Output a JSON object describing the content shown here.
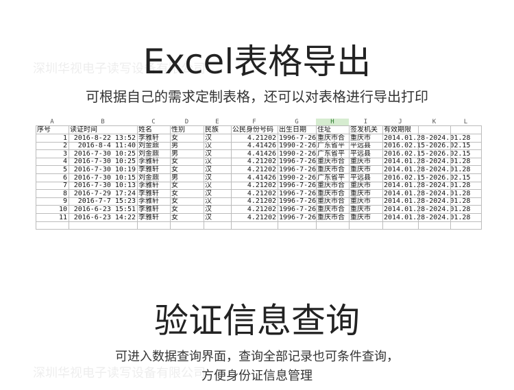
{
  "heading1": "Excel表格导出",
  "subtitle1": "可根据自己的需求定制表格，还可以对表格进行导出打印",
  "watermark": "深圳华视电子读写设备有限公司",
  "table": {
    "column_letters": [
      "A",
      "B",
      "C",
      "D",
      "E",
      "F",
      "G",
      "H",
      "I",
      "J",
      "K",
      "L"
    ],
    "header": [
      "序号",
      "读证时间",
      "姓名",
      "性别",
      "民族",
      "公民身份号码",
      "出生日期",
      "住址",
      "签发机关",
      "有效期限"
    ],
    "rows": [
      [
        1,
        "2016-8-22 13:52",
        "李雅轩",
        "女",
        "汉",
        "4.21202",
        "1996-7-26",
        "重庆市合",
        "重庆市",
        "2014.01.28-2024.01.28"
      ],
      [
        2,
        "2016-8-4 11:40",
        "刘金鼎",
        "男",
        "汉",
        "4.41426",
        "1990-2-26",
        "广东省平",
        "平远县",
        "2016.02.15-2026.02.15"
      ],
      [
        3,
        "2016-7-30 10:25",
        "刘金鼎",
        "男",
        "汉",
        "4.41426",
        "1990-2-26",
        "广东省平",
        "平远县",
        "2016.02.15-2026.02.15"
      ],
      [
        4,
        "2016-7-30 10:25",
        "李雅轩",
        "女",
        "汉",
        "4.21202",
        "1996-7-26",
        "重庆市合",
        "重庆市",
        "2014.01.28-2024.01.28"
      ],
      [
        5,
        "2016-7-30 10:19",
        "李雅轩",
        "女",
        "汉",
        "4.21202",
        "1996-7-26",
        "重庆市合",
        "重庆市",
        "2014.01.28-2024.01.28"
      ],
      [
        6,
        "2016-7-30 10:15",
        "刘金鼎",
        "男",
        "汉",
        "4.41426",
        "1990-2-26",
        "广东省平",
        "平远县",
        "2016.02.15-2026.02.15"
      ],
      [
        7,
        "2016-7-30 10:13",
        "李雅轩",
        "女",
        "汉",
        "4.21202",
        "1996-7-26",
        "重庆市合",
        "重庆市",
        "2014.01.28-2024.01.28"
      ],
      [
        8,
        "2016-7-29 17:24",
        "李雅轩",
        "女",
        "汉",
        "4.21202",
        "1996-7-26",
        "重庆市合",
        "重庆市",
        "2014.01.28-2024.01.28"
      ],
      [
        9,
        "2016-7-7 15:23",
        "李雅轩",
        "女",
        "汉",
        "4.21202",
        "1996-7-26",
        "重庆市合",
        "重庆市",
        "2014.01.28-2024.01.28"
      ],
      [
        10,
        "2016-6-23 15:51",
        "李雅轩",
        "女",
        "汉",
        "4.21202",
        "1996-7-26",
        "重庆市合",
        "重庆市",
        "2014.01.28-2024.01.28"
      ],
      [
        11,
        "2016-6-23 14:22",
        "李雅轩",
        "女",
        "汉",
        "4.21202",
        "1996-7-26",
        "重庆市合",
        "重庆市",
        "2014.01.28-2024.01.28"
      ]
    ]
  },
  "heading2": "验证信息查询",
  "description": [
    "可进入数据查询界面，查询全部记录也可条件查询，",
    "方便身份证信息管理"
  ]
}
